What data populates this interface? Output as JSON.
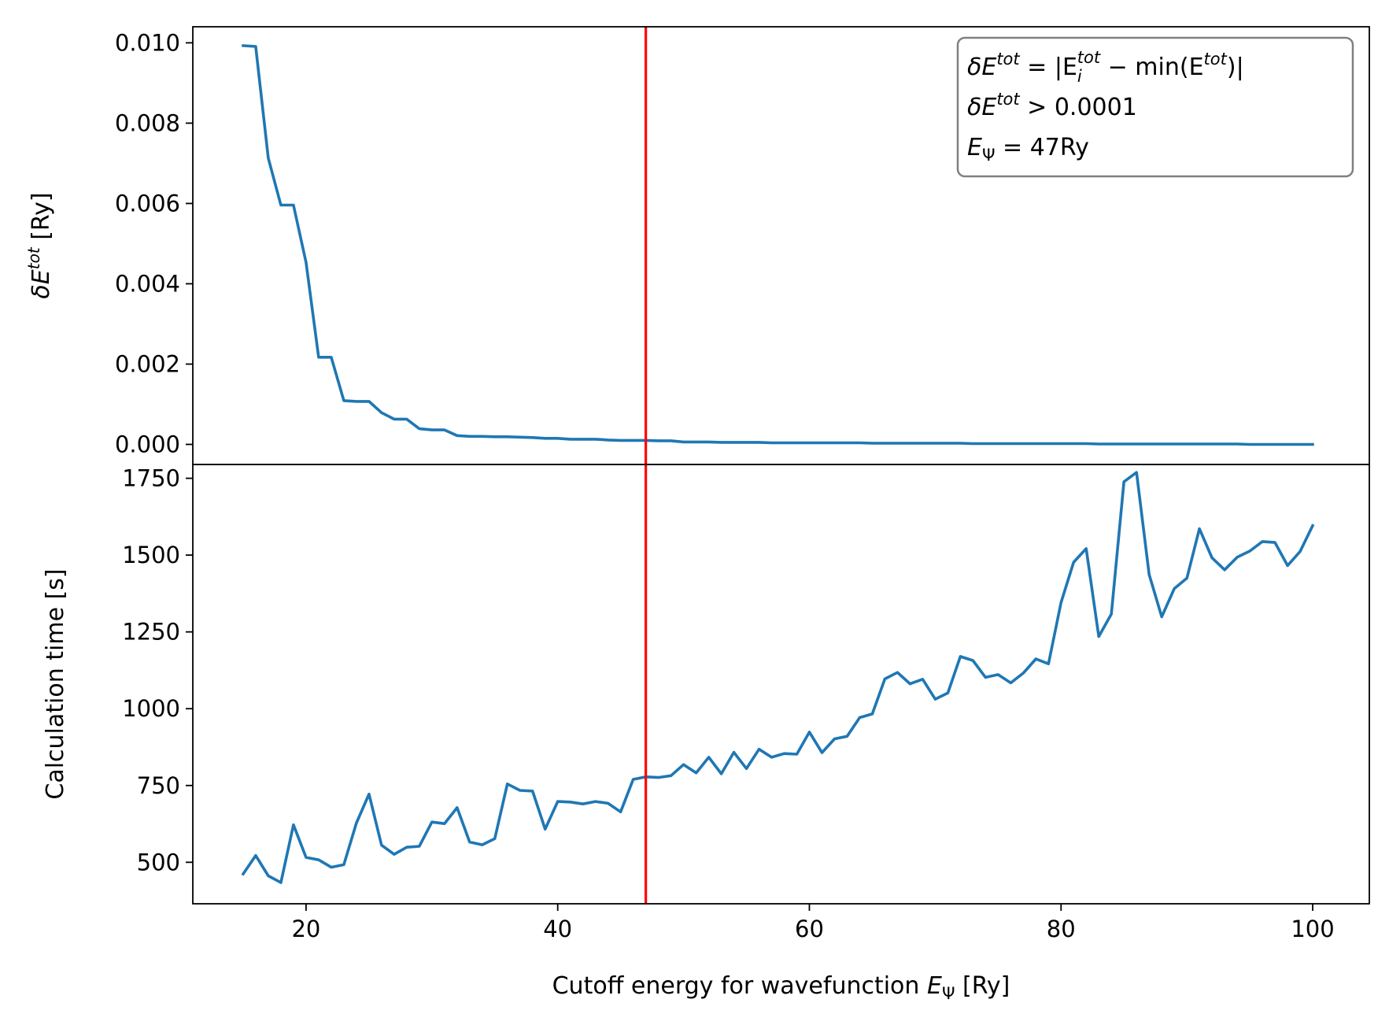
{
  "chart_data": [
    {
      "type": "line",
      "panel": "top",
      "ylabel": "δE^tot [Ry]",
      "ylabel_main": "δE",
      "ylabel_sup": "tot",
      "ylabel_unit": " [Ry]",
      "ylim": [
        -0.0005,
        0.0104
      ],
      "yticks": [
        0.0,
        0.002,
        0.004,
        0.006,
        0.008,
        0.01
      ],
      "ytick_labels": [
        "0.000",
        "0.002",
        "0.004",
        "0.006",
        "0.008",
        "0.010"
      ],
      "series": [
        {
          "name": "δE_tot",
          "color": "#1f77b4",
          "x": [
            15,
            16,
            17,
            18,
            19,
            20,
            21,
            22,
            23,
            24,
            25,
            26,
            27,
            28,
            29,
            30,
            31,
            32,
            33,
            34,
            35,
            36,
            37,
            38,
            39,
            40,
            41,
            42,
            43,
            44,
            45,
            46,
            47,
            48,
            49,
            50,
            51,
            52,
            53,
            54,
            55,
            56,
            57,
            58,
            59,
            60,
            61,
            62,
            63,
            64,
            65,
            66,
            67,
            68,
            69,
            70,
            71,
            72,
            73,
            74,
            75,
            76,
            77,
            78,
            79,
            80,
            81,
            82,
            83,
            84,
            85,
            86,
            87,
            88,
            89,
            90,
            91,
            92,
            93,
            94,
            95,
            96,
            97,
            98,
            99,
            100
          ],
          "values": [
            0.00993,
            0.00991,
            0.00713,
            0.00596,
            0.00596,
            0.00453,
            0.00217,
            0.00217,
            0.00109,
            0.00107,
            0.00107,
            0.00079,
            0.00063,
            0.00063,
            0.00039,
            0.00036,
            0.00036,
            0.00022,
            0.0002,
            0.0002,
            0.00019,
            0.00019,
            0.00018,
            0.00017,
            0.00015,
            0.00015,
            0.00013,
            0.00013,
            0.00013,
            0.00011,
            0.0001,
            0.0001,
            0.0001,
            9e-05,
            9e-05,
            6e-05,
            6e-05,
            6e-05,
            5e-05,
            5e-05,
            5e-05,
            5e-05,
            4e-05,
            4e-05,
            4e-05,
            4e-05,
            4e-05,
            4e-05,
            4e-05,
            4e-05,
            3e-05,
            3e-05,
            3e-05,
            3e-05,
            3e-05,
            3e-05,
            3e-05,
            3e-05,
            2e-05,
            2e-05,
            2e-05,
            2e-05,
            2e-05,
            2e-05,
            2e-05,
            2e-05,
            2e-05,
            2e-05,
            1e-05,
            1e-05,
            1e-05,
            1e-05,
            1e-05,
            1e-05,
            1e-05,
            1e-05,
            1e-05,
            1e-05,
            1e-05,
            1e-05,
            0.0,
            0.0,
            0.0,
            0.0,
            0.0,
            0.0
          ]
        }
      ],
      "vline": {
        "x": 47,
        "color": "#ff0000"
      },
      "legend": {
        "position": "top-right",
        "line1_parts": [
          "δE",
          "tot",
          " = |E",
          "i",
          "tot",
          " − min(E",
          "tot",
          ")|"
        ],
        "line2_parts": [
          "δE",
          "tot",
          " > 0.0001"
        ],
        "line3_parts": [
          "E",
          "Ψ",
          " = 47Ry"
        ]
      }
    },
    {
      "type": "line",
      "panel": "bottom",
      "xlabel": "Cutoff energy for wavefunction E_Ψ [Ry]",
      "xlabel_main": "Cutoff energy for wavefunction ",
      "xlabel_e": "E",
      "xlabel_sub": "Ψ",
      "xlabel_unit": " [Ry]",
      "ylabel": "Calculation time [s]",
      "xlim": [
        11,
        104.5
      ],
      "ylim": [
        365,
        1795
      ],
      "xticks": [
        20,
        40,
        60,
        80,
        100
      ],
      "xtick_labels": [
        "20",
        "40",
        "60",
        "80",
        "100"
      ],
      "yticks": [
        500,
        750,
        1000,
        1250,
        1500,
        1750
      ],
      "ytick_labels": [
        "500",
        "750",
        "1000",
        "1250",
        "1500",
        "1750"
      ],
      "series": [
        {
          "name": "Calculation time",
          "color": "#1f77b4",
          "x": [
            15,
            16,
            17,
            18,
            19,
            20,
            21,
            22,
            23,
            24,
            25,
            26,
            27,
            28,
            29,
            30,
            31,
            32,
            33,
            34,
            35,
            36,
            37,
            38,
            39,
            40,
            41,
            42,
            43,
            44,
            45,
            46,
            47,
            48,
            49,
            50,
            51,
            52,
            53,
            54,
            55,
            56,
            57,
            58,
            59,
            60,
            61,
            62,
            63,
            64,
            65,
            66,
            67,
            68,
            69,
            70,
            71,
            72,
            73,
            74,
            75,
            76,
            77,
            78,
            79,
            80,
            81,
            82,
            83,
            84,
            85,
            86,
            87,
            88,
            89,
            90,
            91,
            92,
            93,
            94,
            95,
            96,
            97,
            98,
            99,
            100
          ],
          "values": [
            462,
            522,
            456,
            434,
            622,
            516,
            508,
            484,
            492,
            628,
            722,
            556,
            526,
            549,
            552,
            631,
            626,
            678,
            566,
            557,
            577,
            755,
            734,
            732,
            608,
            698,
            696,
            690,
            698,
            692,
            664,
            770,
            778,
            776,
            782,
            818,
            791,
            842,
            788,
            858,
            805,
            868,
            842,
            854,
            852,
            924,
            857,
            902,
            910,
            971,
            983,
            1097,
            1118,
            1081,
            1096,
            1031,
            1051,
            1170,
            1157,
            1102,
            1111,
            1084,
            1116,
            1162,
            1146,
            1346,
            1477,
            1521,
            1235,
            1308,
            1739,
            1769,
            1437,
            1299,
            1391,
            1425,
            1586,
            1491,
            1452,
            1493,
            1513,
            1544,
            1541,
            1466,
            1512,
            1596
          ]
        }
      ],
      "vline": {
        "x": 47,
        "color": "#ff0000"
      }
    }
  ]
}
